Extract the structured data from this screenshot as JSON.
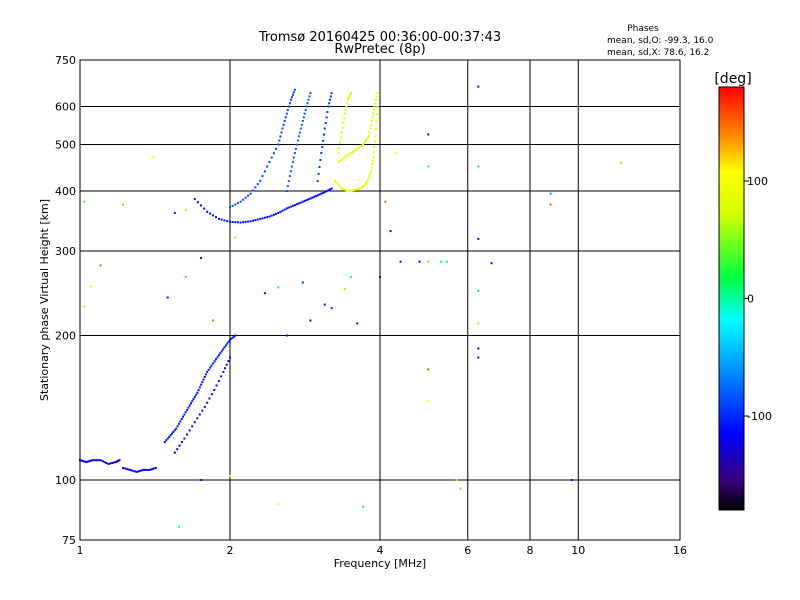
{
  "chart_data": {
    "type": "scatter",
    "title": "Tromsø 20160425 00:36:00-00:37:43",
    "subtitle": "RwPretec (8p)",
    "xlabel": "Frequency [MHz]",
    "ylabel": "Stationary phase Virtual Height [km]",
    "x_scale": "log",
    "y_scale": "log",
    "xlim": [
      1,
      16
    ],
    "ylim": [
      75,
      750
    ],
    "x_ticks": [
      1,
      2,
      4,
      6,
      8,
      10,
      16
    ],
    "y_ticks": [
      75,
      100,
      200,
      300,
      400,
      500,
      600,
      750
    ],
    "grid": true,
    "phases_box": {
      "title": "Phases",
      "line_o": "mean, sd,O: -99.3, 16.0",
      "line_x": "mean, sd,X:  78.6, 16.2"
    },
    "colorbar": {
      "label": "[deg]",
      "range": [
        -180,
        180
      ],
      "ticks": [
        100,
        0,
        -100
      ],
      "colormap": "rainbow"
    },
    "series": [
      {
        "mode": "O",
        "traces": [
          {
            "f": [
              1.0,
              1.03,
              1.06,
              1.1,
              1.14,
              1.18,
              1.2
            ],
            "h": [
              110,
              109,
              110,
              110,
              108,
              109,
              110
            ],
            "phase": -120
          },
          {
            "f": [
              1.22,
              1.26,
              1.3,
              1.34,
              1.38,
              1.42
            ],
            "h": [
              106,
              105,
              104,
              105,
              105,
              106
            ],
            "phase": -110
          },
          {
            "f": [
              1.48,
              1.52,
              1.56,
              1.6,
              1.64,
              1.68,
              1.72,
              1.76,
              1.8,
              1.85,
              1.9,
              1.95,
              2.0,
              2.05
            ],
            "h": [
              120,
              124,
              128,
              134,
              140,
              146,
              152,
              160,
              168,
              175,
              182,
              189,
              196,
              200
            ],
            "phase": -105
          },
          {
            "f": [
              1.55,
              1.62,
              1.7,
              1.78,
              1.86,
              1.94,
              2.0
            ],
            "h": [
              114,
              122,
              132,
              142,
              154,
              168,
              180
            ],
            "phase": -115
          },
          {
            "f": [
              1.7,
              1.8,
              1.9,
              2.0,
              2.1,
              2.2,
              2.3,
              2.4,
              2.5,
              2.6,
              2.7,
              2.8,
              2.9,
              3.0,
              3.1,
              3.2
            ],
            "h": [
              385,
              362,
              350,
              345,
              344,
              346,
              350,
              354,
              360,
              368,
              374,
              380,
              386,
              392,
              398,
              405
            ],
            "phase": -110
          },
          {
            "f": [
              2.0,
              2.1,
              2.2,
              2.3,
              2.4,
              2.5,
              2.55,
              2.6,
              2.65,
              2.7
            ],
            "h": [
              370,
              380,
              395,
              420,
              460,
              500,
              540,
              580,
              620,
              650
            ],
            "phase": -90
          },
          {
            "f": [
              2.6,
              2.65,
              2.7,
              2.75,
              2.8,
              2.85,
              2.9
            ],
            "h": [
              400,
              440,
              480,
              520,
              560,
              600,
              640
            ],
            "phase": -80
          },
          {
            "f": [
              3.0,
              3.05,
              3.1,
              3.15,
              3.2
            ],
            "h": [
              420,
              480,
              540,
              600,
              640
            ],
            "phase": -95
          }
        ]
      },
      {
        "mode": "X",
        "traces": [
          {
            "f": [
              3.25,
              3.35,
              3.45,
              3.55,
              3.65,
              3.72,
              3.78,
              3.84,
              3.88,
              3.92,
              3.95
            ],
            "h": [
              420,
              405,
              400,
              402,
              405,
              410,
              420,
              440,
              470,
              520,
              600
            ],
            "phase": 90
          },
          {
            "f": [
              3.3,
              3.4,
              3.5,
              3.6,
              3.7,
              3.8,
              3.85,
              3.9,
              3.95
            ],
            "h": [
              460,
              470,
              480,
              490,
              500,
              520,
              560,
              600,
              640
            ],
            "phase": 80
          },
          {
            "f": [
              3.3,
              3.35,
              3.4,
              3.45,
              3.5
            ],
            "h": [
              480,
              530,
              580,
              620,
              640
            ],
            "phase": 85
          }
        ]
      },
      {
        "mode": "scattered",
        "points": [
          {
            "f": 1.02,
            "h": 380,
            "phase": 40
          },
          {
            "f": 1.05,
            "h": 253,
            "phase": 70
          },
          {
            "f": 1.02,
            "h": 230,
            "phase": 60
          },
          {
            "f": 1.1,
            "h": 280,
            "phase": 150
          },
          {
            "f": 1.22,
            "h": 375,
            "phase": 130
          },
          {
            "f": 1.4,
            "h": 470,
            "phase": 110
          },
          {
            "f": 1.55,
            "h": 360,
            "phase": -100
          },
          {
            "f": 1.63,
            "h": 365,
            "phase": 120
          },
          {
            "f": 1.63,
            "h": 265,
            "phase": 30
          },
          {
            "f": 1.5,
            "h": 240,
            "phase": -110
          },
          {
            "f": 1.75,
            "h": 290,
            "phase": -120
          },
          {
            "f": 1.85,
            "h": 215,
            "phase": 150
          },
          {
            "f": 1.75,
            "h": 100,
            "phase": -110
          },
          {
            "f": 1.58,
            "h": 80,
            "phase": -10
          },
          {
            "f": 2.0,
            "h": 102,
            "phase": 90
          },
          {
            "f": 2.05,
            "h": 320,
            "phase": 50
          },
          {
            "f": 2.35,
            "h": 245,
            "phase": -110
          },
          {
            "f": 2.5,
            "h": 252,
            "phase": -30
          },
          {
            "f": 2.5,
            "h": 89,
            "phase": 100
          },
          {
            "f": 2.6,
            "h": 200,
            "phase": -120
          },
          {
            "f": 2.8,
            "h": 258,
            "phase": -90
          },
          {
            "f": 2.9,
            "h": 215,
            "phase": -130
          },
          {
            "f": 3.1,
            "h": 232,
            "phase": -110
          },
          {
            "f": 3.2,
            "h": 228,
            "phase": -100
          },
          {
            "f": 3.5,
            "h": 265,
            "phase": 0
          },
          {
            "f": 3.4,
            "h": 250,
            "phase": 60
          },
          {
            "f": 3.7,
            "h": 88,
            "phase": -40
          },
          {
            "f": 3.6,
            "h": 212,
            "phase": -110
          },
          {
            "f": 4.0,
            "h": 265,
            "phase": -120
          },
          {
            "f": 4.1,
            "h": 380,
            "phase": 150
          },
          {
            "f": 4.3,
            "h": 480,
            "phase": 100
          },
          {
            "f": 4.2,
            "h": 330,
            "phase": -110
          },
          {
            "f": 4.4,
            "h": 285,
            "phase": -110
          },
          {
            "f": 4.8,
            "h": 285,
            "phase": -120
          },
          {
            "f": 5.0,
            "h": 285,
            "phase": 40
          },
          {
            "f": 5.0,
            "h": 450,
            "phase": -30
          },
          {
            "f": 5.0,
            "h": 525,
            "phase": -120
          },
          {
            "f": 5.0,
            "h": 170,
            "phase": 160
          },
          {
            "f": 5.0,
            "h": 146,
            "phase": 110
          },
          {
            "f": 5.3,
            "h": 285,
            "phase": 30
          },
          {
            "f": 5.45,
            "h": 285,
            "phase": -10
          },
          {
            "f": 5.7,
            "h": 100,
            "phase": 60
          },
          {
            "f": 5.8,
            "h": 96,
            "phase": 40
          },
          {
            "f": 6.3,
            "h": 660,
            "phase": -120
          },
          {
            "f": 6.3,
            "h": 450,
            "phase": -40
          },
          {
            "f": 6.3,
            "h": 318,
            "phase": -120
          },
          {
            "f": 6.3,
            "h": 248,
            "phase": -40
          },
          {
            "f": 6.3,
            "h": 212,
            "phase": 60
          },
          {
            "f": 6.3,
            "h": 188,
            "phase": -120
          },
          {
            "f": 6.3,
            "h": 180,
            "phase": -120
          },
          {
            "f": 6.7,
            "h": 283,
            "phase": -120
          },
          {
            "f": 8.8,
            "h": 395,
            "phase": -60
          },
          {
            "f": 8.8,
            "h": 375,
            "phase": 150
          },
          {
            "f": 9.7,
            "h": 100,
            "phase": -130
          },
          {
            "f": 12.2,
            "h": 458,
            "phase": 120
          }
        ]
      }
    ]
  }
}
